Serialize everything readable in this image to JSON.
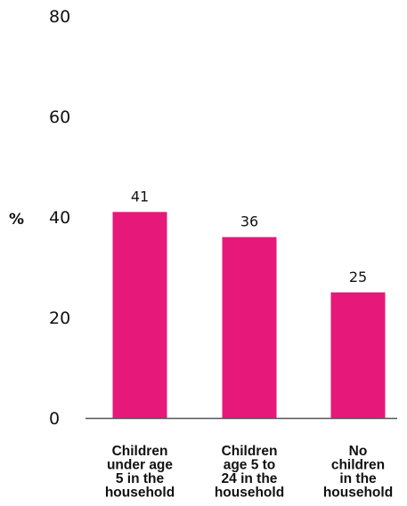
{
  "chart_data": {
    "type": "bar",
    "categories": [
      [
        "Children",
        "under age",
        "5 in the",
        "household"
      ],
      [
        "Children",
        "age 5 to",
        "24 in the",
        "household"
      ],
      [
        "No",
        "children",
        "in the",
        "household"
      ]
    ],
    "values": [
      41,
      36,
      25
    ],
    "data_labels": [
      "41",
      "36",
      "25"
    ],
    "ylabel": "%",
    "ylim": [
      0,
      80
    ],
    "yticks": [
      0,
      20,
      40,
      60,
      80
    ],
    "grid": false,
    "bar_color": "#e6197a",
    "axis_color": "#555555"
  }
}
